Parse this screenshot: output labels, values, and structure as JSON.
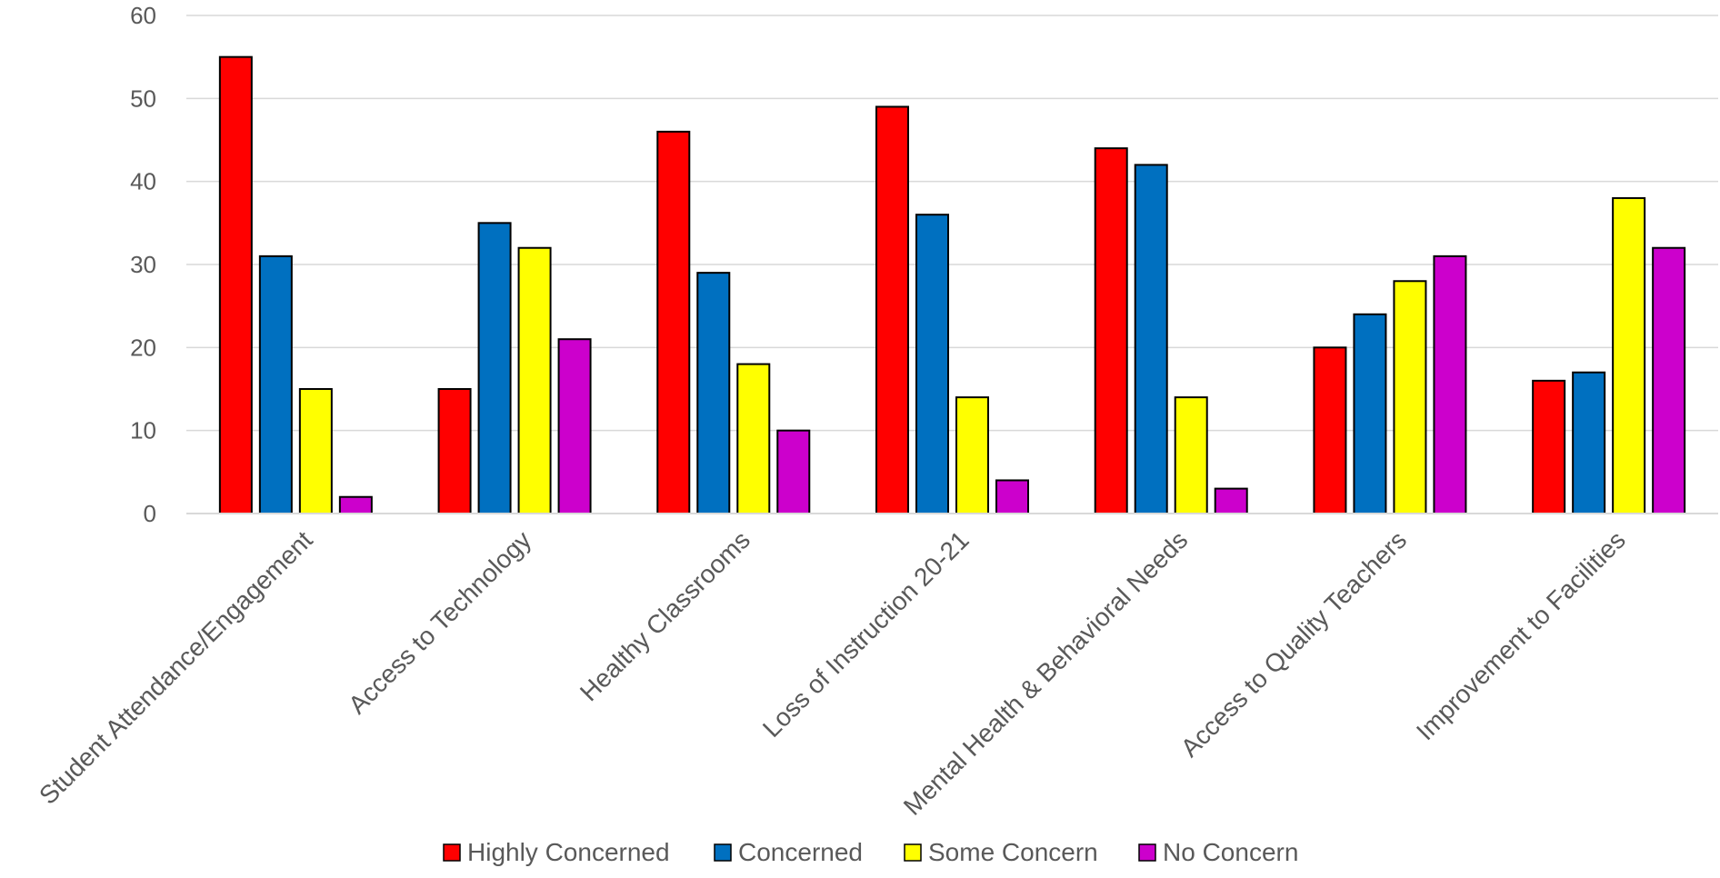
{
  "chart_data": {
    "type": "bar",
    "title": "",
    "xlabel": "",
    "ylabel": "",
    "ylim": [
      0,
      60
    ],
    "yticks": [
      0,
      10,
      20,
      30,
      40,
      50,
      60
    ],
    "grid": true,
    "legend_position": "bottom",
    "categories": [
      "Student Attendance/Engagement",
      "Access to Technology",
      "Healthy Classrooms",
      "Loss of Instruction 20-21",
      "Mental Health & Behavioral Needs",
      "Access to Quality Teachers",
      "Improvement to Facilities"
    ],
    "series": [
      {
        "name": "Highly Concerned",
        "color": "#ff0000",
        "values": [
          55,
          15,
          46,
          49,
          44,
          20,
          16
        ]
      },
      {
        "name": "Concerned",
        "color": "#0070c0",
        "values": [
          31,
          35,
          29,
          36,
          42,
          24,
          17
        ]
      },
      {
        "name": "Some Concern",
        "color": "#ffff00",
        "values": [
          15,
          32,
          18,
          14,
          14,
          28,
          38
        ]
      },
      {
        "name": "No Concern",
        "color": "#cc00cc",
        "values": [
          2,
          21,
          10,
          4,
          3,
          31,
          32
        ]
      }
    ]
  }
}
